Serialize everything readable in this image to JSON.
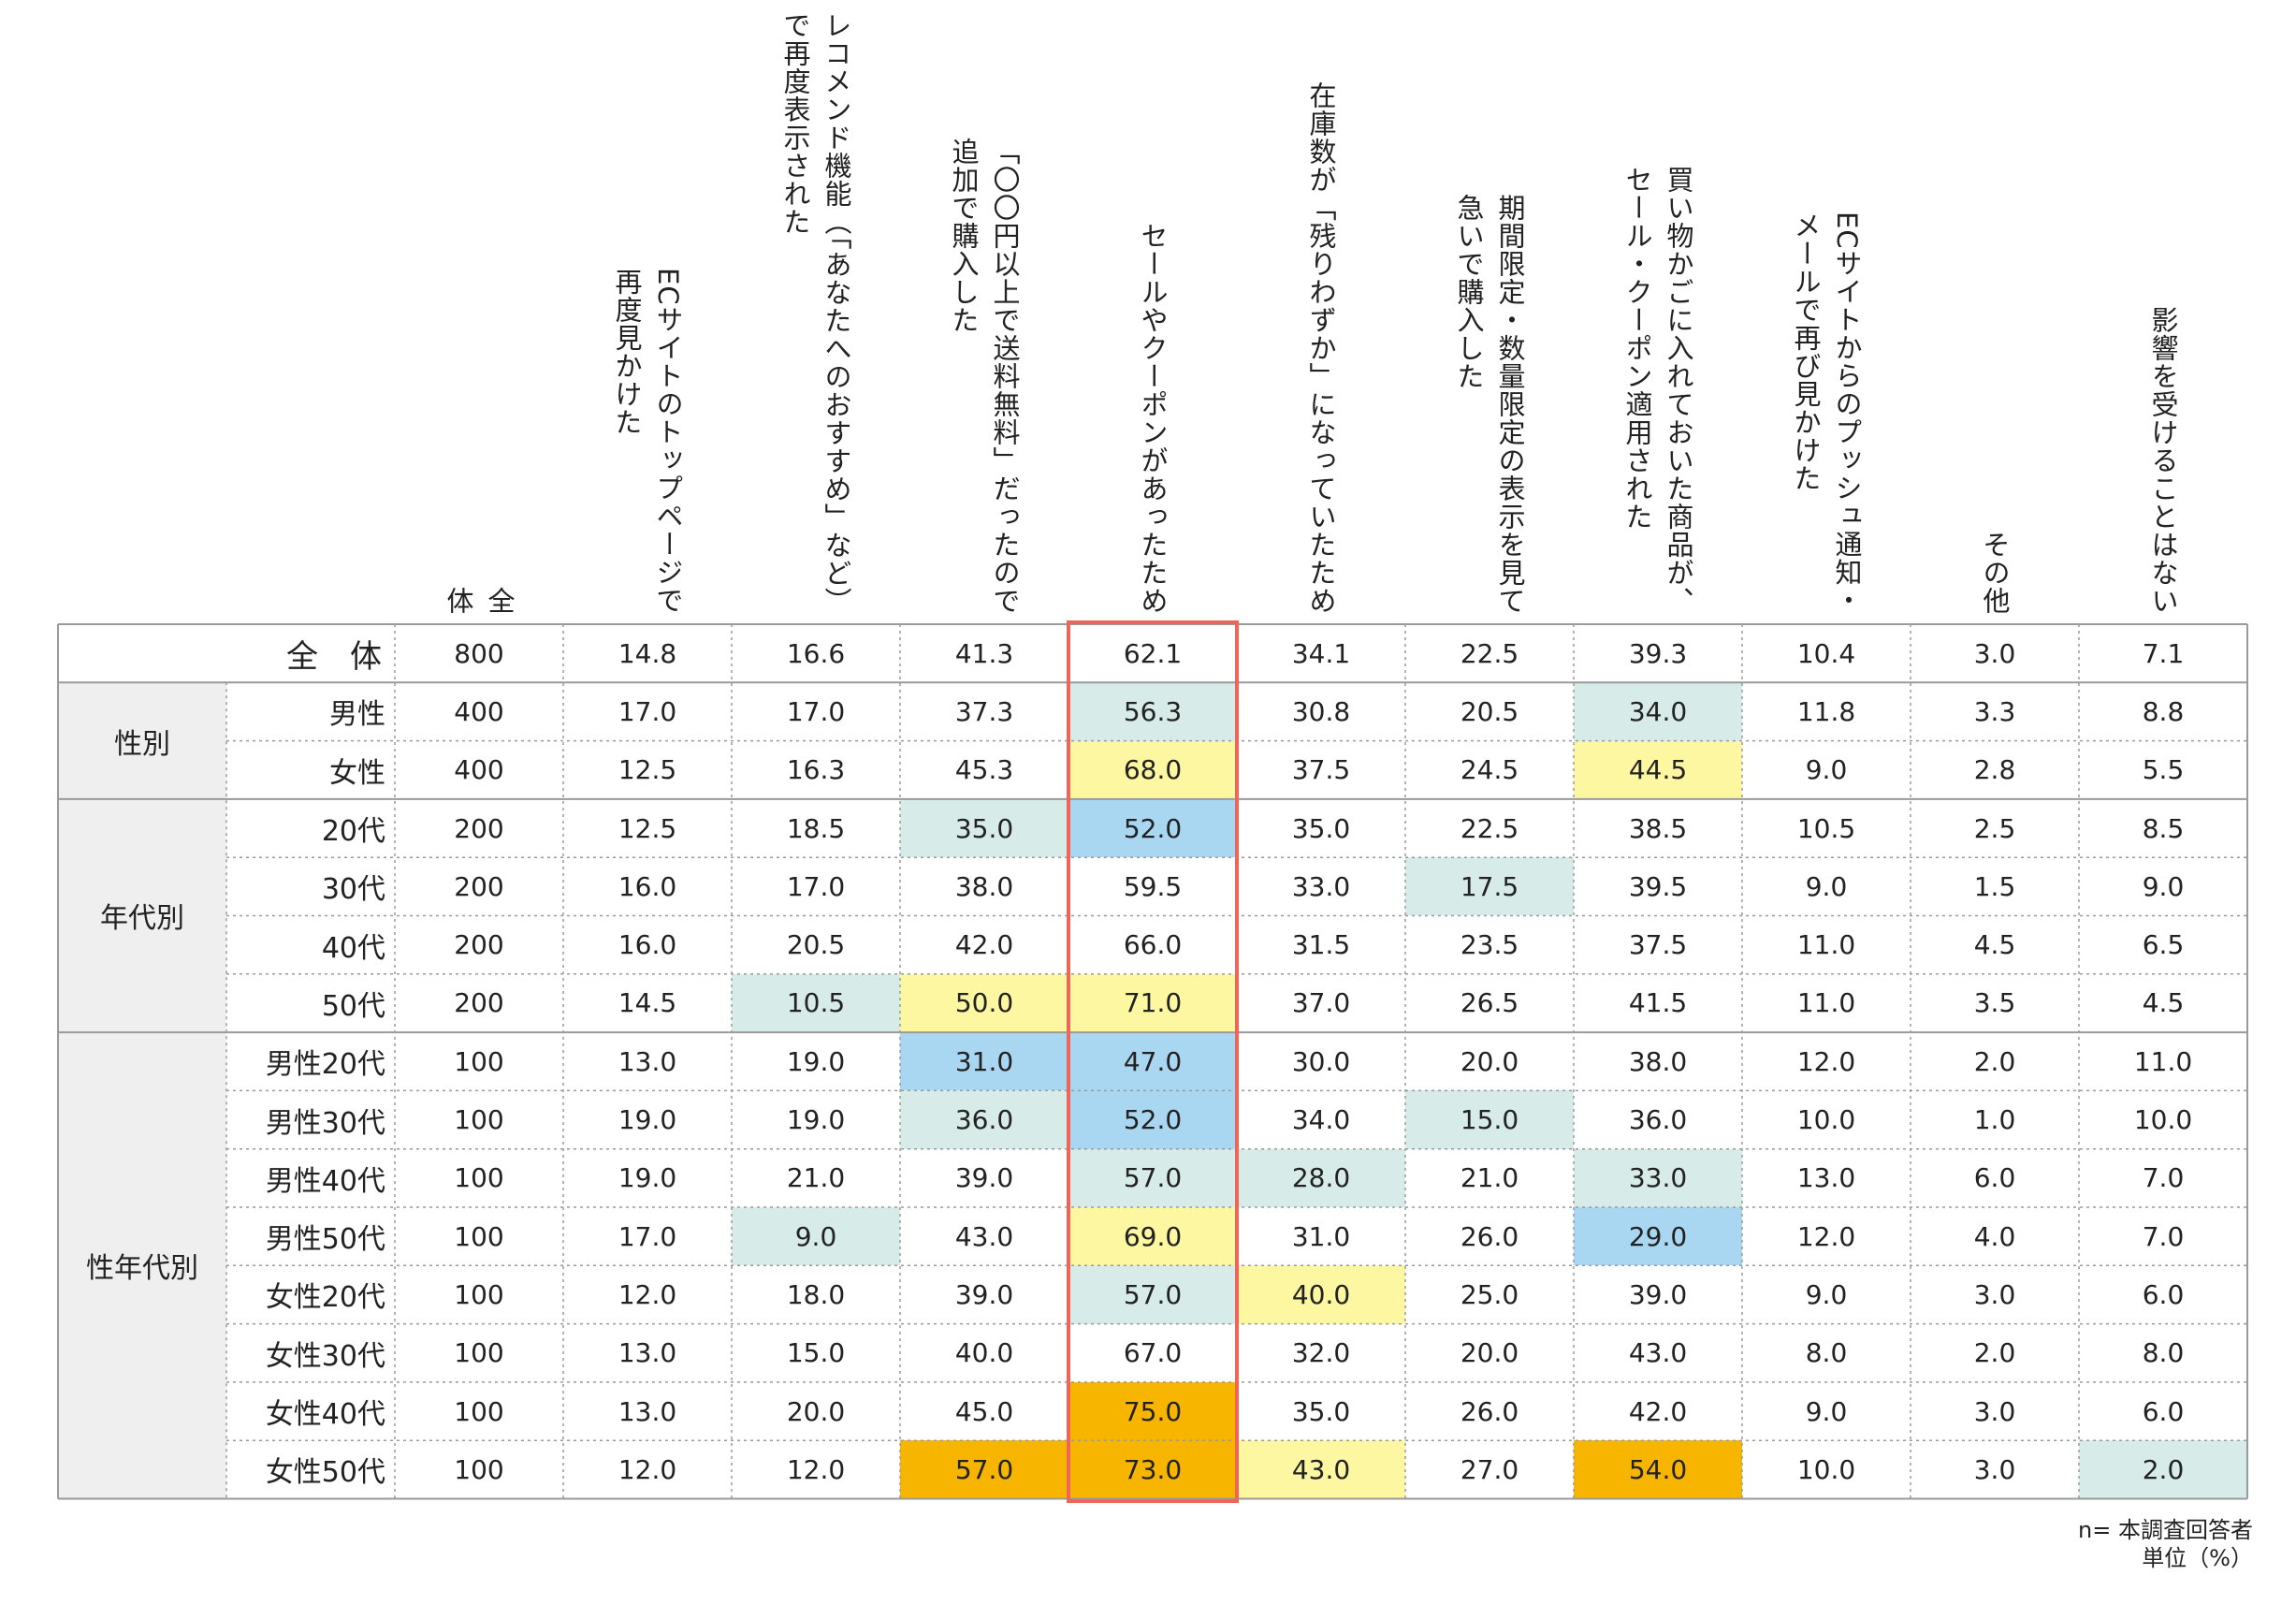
{
  "chart_data": {
    "type": "table",
    "columns": [
      {
        "label": "全\n体"
      },
      {
        "label": "ECサイトのトップページで\n再度見かけた"
      },
      {
        "label": "レコメンド機能（「あなたへのおすすめ」など）\nで再度表示された"
      },
      {
        "label": "「〇〇円以上で送料無料」だったので\n追加で購入した"
      },
      {
        "label": "セールやクーポンがあったため"
      },
      {
        "label": "在庫数が「残りわずか」になっていたため"
      },
      {
        "label": "期間限定・数量限定の表示を見て\n急いで購入した"
      },
      {
        "label": "買い物かごに入れておいた商品が、\nセール・クーポン適用された"
      },
      {
        "label": "ECサイトからのプッシュ通知・\nメールで再び見かけた"
      },
      {
        "label": "その他"
      },
      {
        "label": "影響を受けることはない"
      }
    ],
    "groups": [
      {
        "label": "",
        "rows": [
          0
        ]
      },
      {
        "label": "性別",
        "rows": [
          1,
          2
        ]
      },
      {
        "label": "年代別",
        "rows": [
          3,
          4,
          5,
          6
        ]
      },
      {
        "label": "性年代別",
        "rows": [
          7,
          8,
          9,
          10,
          11,
          12,
          13,
          14
        ]
      }
    ],
    "rows": [
      {
        "label": "全　体",
        "values": [
          "800",
          "14.8",
          "16.6",
          "41.3",
          "62.1",
          "34.1",
          "22.5",
          "39.3",
          "10.4",
          "3.0",
          "7.1"
        ]
      },
      {
        "label": "男性",
        "values": [
          "400",
          "17.0",
          "17.0",
          "37.3",
          "56.3",
          "30.8",
          "20.5",
          "34.0",
          "11.8",
          "3.3",
          "8.8"
        ]
      },
      {
        "label": "女性",
        "values": [
          "400",
          "12.5",
          "16.3",
          "45.3",
          "68.0",
          "37.5",
          "24.5",
          "44.5",
          "9.0",
          "2.8",
          "5.5"
        ]
      },
      {
        "label": "20代",
        "values": [
          "200",
          "12.5",
          "18.5",
          "35.0",
          "52.0",
          "35.0",
          "22.5",
          "38.5",
          "10.5",
          "2.5",
          "8.5"
        ]
      },
      {
        "label": "30代",
        "values": [
          "200",
          "16.0",
          "17.0",
          "38.0",
          "59.5",
          "33.0",
          "17.5",
          "39.5",
          "9.0",
          "1.5",
          "9.0"
        ]
      },
      {
        "label": "40代",
        "values": [
          "200",
          "16.0",
          "20.5",
          "42.0",
          "66.0",
          "31.5",
          "23.5",
          "37.5",
          "11.0",
          "4.5",
          "6.5"
        ]
      },
      {
        "label": "50代",
        "values": [
          "200",
          "14.5",
          "10.5",
          "50.0",
          "71.0",
          "37.0",
          "26.5",
          "41.5",
          "11.0",
          "3.5",
          "4.5"
        ]
      },
      {
        "label": "男性20代",
        "values": [
          "100",
          "13.0",
          "19.0",
          "31.0",
          "47.0",
          "30.0",
          "20.0",
          "38.0",
          "12.0",
          "2.0",
          "11.0"
        ]
      },
      {
        "label": "男性30代",
        "values": [
          "100",
          "19.0",
          "19.0",
          "36.0",
          "52.0",
          "34.0",
          "15.0",
          "36.0",
          "10.0",
          "1.0",
          "10.0"
        ]
      },
      {
        "label": "男性40代",
        "values": [
          "100",
          "19.0",
          "21.0",
          "39.0",
          "57.0",
          "28.0",
          "21.0",
          "33.0",
          "13.0",
          "6.0",
          "7.0"
        ]
      },
      {
        "label": "男性50代",
        "values": [
          "100",
          "17.0",
          "9.0",
          "43.0",
          "69.0",
          "31.0",
          "26.0",
          "29.0",
          "12.0",
          "4.0",
          "7.0"
        ]
      },
      {
        "label": "女性20代",
        "values": [
          "100",
          "12.0",
          "18.0",
          "39.0",
          "57.0",
          "40.0",
          "25.0",
          "39.0",
          "9.0",
          "3.0",
          "6.0"
        ]
      },
      {
        "label": "女性30代",
        "values": [
          "100",
          "13.0",
          "15.0",
          "40.0",
          "67.0",
          "32.0",
          "20.0",
          "43.0",
          "8.0",
          "2.0",
          "8.0"
        ]
      },
      {
        "label": "女性40代",
        "values": [
          "100",
          "13.0",
          "20.0",
          "45.0",
          "75.0",
          "35.0",
          "26.0",
          "42.0",
          "9.0",
          "3.0",
          "6.0"
        ]
      },
      {
        "label": "女性50代",
        "values": [
          "100",
          "12.0",
          "12.0",
          "57.0",
          "73.0",
          "43.0",
          "27.0",
          "54.0",
          "10.0",
          "3.0",
          "2.0"
        ]
      }
    ],
    "cell_highlights": [
      {
        "row": 1,
        "col": 4,
        "color": "#d7ebe9"
      },
      {
        "row": 1,
        "col": 7,
        "color": "#d7ebe9"
      },
      {
        "row": 2,
        "col": 4,
        "color": "#fdf7a1"
      },
      {
        "row": 2,
        "col": 7,
        "color": "#fdf7a1"
      },
      {
        "row": 3,
        "col": 3,
        "color": "#d7ebe9"
      },
      {
        "row": 3,
        "col": 4,
        "color": "#a9d7f2"
      },
      {
        "row": 4,
        "col": 6,
        "color": "#d7ebe9"
      },
      {
        "row": 6,
        "col": 2,
        "color": "#d7ebe9"
      },
      {
        "row": 6,
        "col": 3,
        "color": "#fdf7a1"
      },
      {
        "row": 6,
        "col": 4,
        "color": "#fdf7a1"
      },
      {
        "row": 7,
        "col": 3,
        "color": "#a9d7f2"
      },
      {
        "row": 7,
        "col": 4,
        "color": "#a9d7f2"
      },
      {
        "row": 8,
        "col": 3,
        "color": "#d7ebe9"
      },
      {
        "row": 8,
        "col": 4,
        "color": "#a9d7f2"
      },
      {
        "row": 8,
        "col": 6,
        "color": "#d7ebe9"
      },
      {
        "row": 9,
        "col": 4,
        "color": "#d7ebe9"
      },
      {
        "row": 9,
        "col": 5,
        "color": "#d7ebe9"
      },
      {
        "row": 9,
        "col": 7,
        "color": "#d7ebe9"
      },
      {
        "row": 10,
        "col": 2,
        "color": "#d7ebe9"
      },
      {
        "row": 10,
        "col": 4,
        "color": "#fdf7a1"
      },
      {
        "row": 10,
        "col": 7,
        "color": "#a9d7f2"
      },
      {
        "row": 11,
        "col": 4,
        "color": "#d7ebe9"
      },
      {
        "row": 11,
        "col": 5,
        "color": "#fdf7a1"
      },
      {
        "row": 13,
        "col": 4,
        "color": "#f7b500"
      },
      {
        "row": 14,
        "col": 3,
        "color": "#f7b500"
      },
      {
        "row": 14,
        "col": 4,
        "color": "#f7b500"
      },
      {
        "row": 14,
        "col": 5,
        "color": "#fdf7a1"
      },
      {
        "row": 14,
        "col": 7,
        "color": "#f7b500"
      },
      {
        "row": 14,
        "col": 10,
        "color": "#d7ebe9"
      }
    ],
    "highlighted_column": 4,
    "highlight_color": "#f0655a"
  },
  "notes": {
    "line1": "n= 本調査回答者",
    "line2": "単位（%）"
  }
}
